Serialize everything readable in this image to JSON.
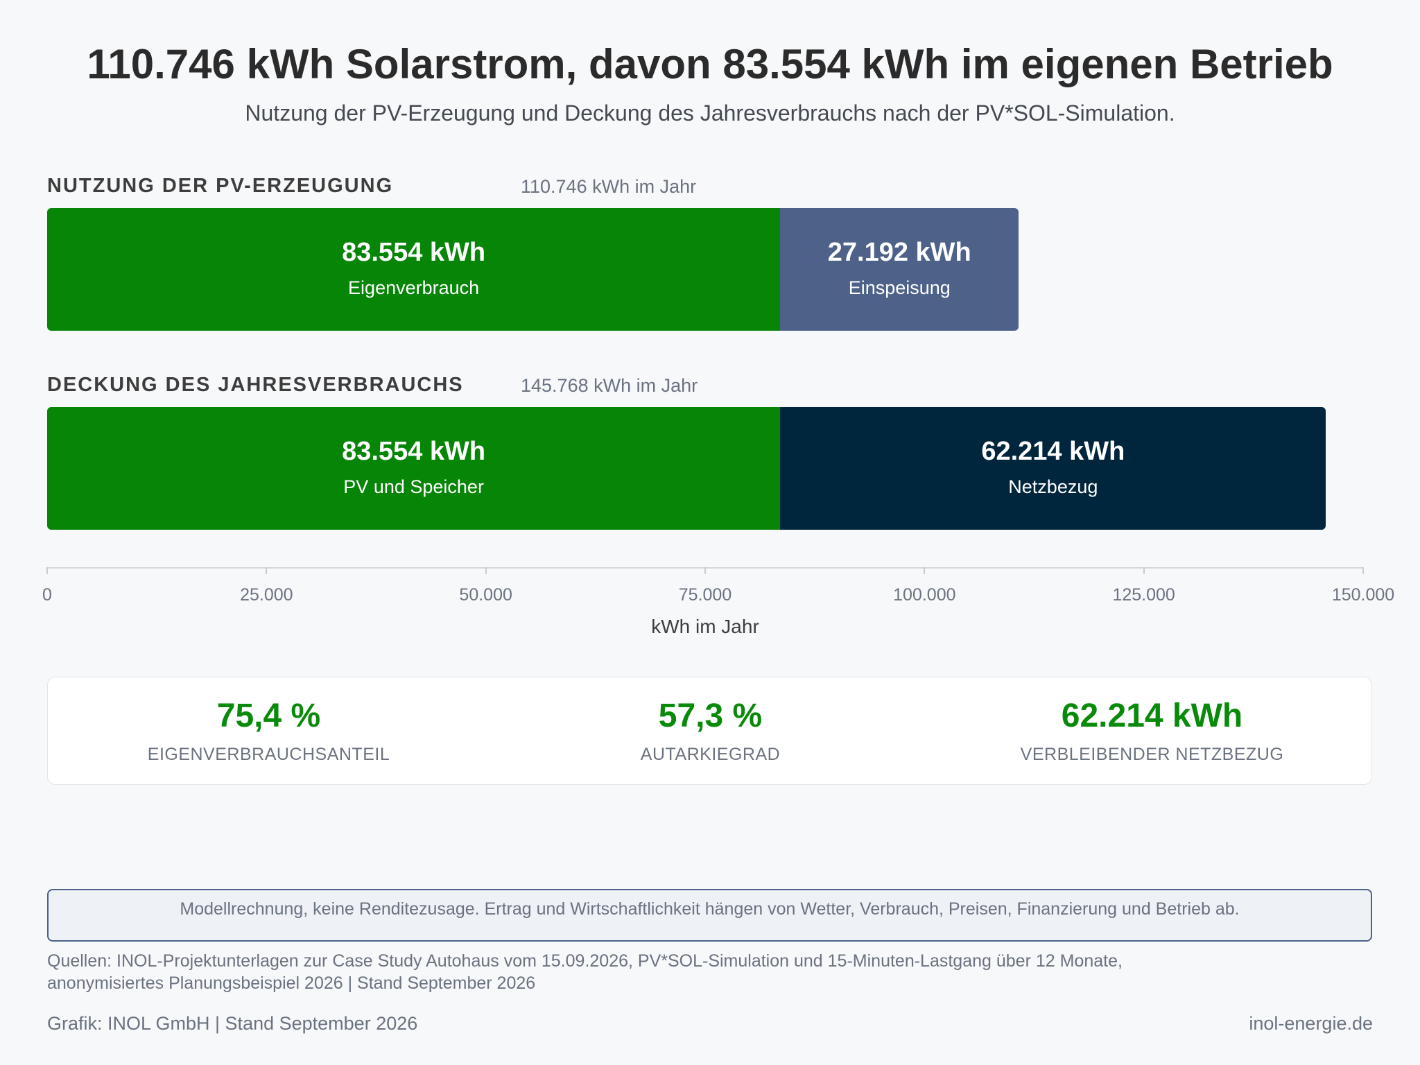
{
  "header": {
    "title": "110.746 kWh Solarstrom, davon 83.554 kWh im eigenen Betrieb",
    "subtitle": "Nutzung der PV-Erzeugung und Deckung des Jahresverbrauchs nach der PV*SOL-Simulation."
  },
  "chart_data": {
    "type": "bar",
    "orientation": "horizontal-stacked",
    "xlabel": "kWh im Jahr",
    "xlim": [
      0,
      150000
    ],
    "ticks": [
      {
        "value": 0,
        "label": "0"
      },
      {
        "value": 25000,
        "label": "25.000"
      },
      {
        "value": 50000,
        "label": "50.000"
      },
      {
        "value": 75000,
        "label": "75.000"
      },
      {
        "value": 100000,
        "label": "100.000"
      },
      {
        "value": 125000,
        "label": "125.000"
      },
      {
        "value": 150000,
        "label": "150.000"
      }
    ],
    "bars": [
      {
        "label": "NUTZUNG DER PV-ERZEUGUNG",
        "total_label": "110.746 kWh im Jahr",
        "segments": [
          {
            "name": "Eigenverbrauch",
            "value": 83554,
            "value_label": "83.554 kWh",
            "color": "#078507"
          },
          {
            "name": "Einspeisung",
            "value": 27192,
            "value_label": "27.192 kWh",
            "color": "#4d6189"
          }
        ]
      },
      {
        "label": "DECKUNG DES JAHRESVERBRAUCHS",
        "total_label": "145.768 kWh im Jahr",
        "segments": [
          {
            "name": "PV und Speicher",
            "value": 83554,
            "value_label": "83.554 kWh",
            "color": "#078507"
          },
          {
            "name": "Netzbezug",
            "value": 62214,
            "value_label": "62.214 kWh",
            "color": "#00263d"
          }
        ]
      }
    ]
  },
  "kpis": [
    {
      "value": "75,4 %",
      "label": "EIGENVERBRAUCHSANTEIL"
    },
    {
      "value": "57,3 %",
      "label": "AUTARKIEGRAD"
    },
    {
      "value": "62.214 kWh",
      "label": "VERBLEIBENDER NETZBEZUG"
    }
  ],
  "colors": {
    "accent_green": "#0a8a0a",
    "frame_blue": "#4d6189"
  },
  "footer": {
    "disclaimer": "Modellrechnung, keine Renditezusage. Ertrag und Wirtschaftlichkeit hängen von Wetter, Verbrauch, Preisen, Finanzierung und Betrieb ab.",
    "sources_line1": "Quellen: INOL-Projektunterlagen zur Case Study Autohaus vom 15.09.2026, PV*SOL-Simulation und 15-Minuten-Lastgang über 12 Monate,",
    "sources_line2": "anonymisiertes Planungsbeispiel 2026 | Stand September 2026",
    "credit": "Grafik: INOL GmbH | Stand September 2026",
    "website": "inol-energie.de"
  }
}
